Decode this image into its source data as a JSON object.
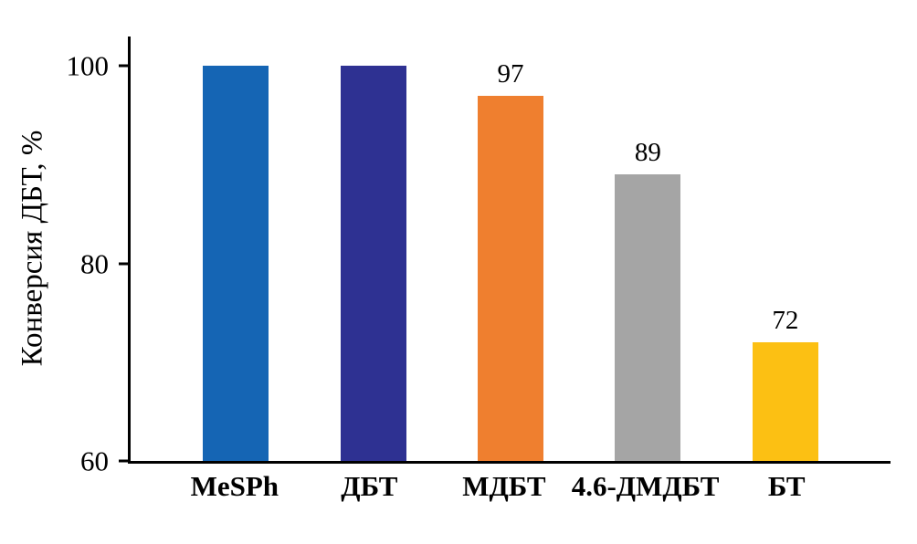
{
  "chart_data": {
    "type": "bar",
    "title": "",
    "xlabel": "",
    "ylabel": "Конверсия ДБТ, %",
    "ylim": [
      60,
      103
    ],
    "yticks": [
      60,
      80,
      100
    ],
    "grid": false,
    "legend": "none",
    "categories": [
      "MeSPh",
      "ДБТ",
      "МДБТ",
      "4.6-ДМДБТ",
      "БТ"
    ],
    "values": [
      100,
      100,
      97,
      89,
      72
    ],
    "bar_labels": [
      "",
      "",
      "97",
      "89",
      "72"
    ],
    "bar_colors": [
      "#1565b4",
      "#2e3192",
      "#ef7f2f",
      "#a5a5a5",
      "#fcc013"
    ],
    "axis_color": "#000000"
  }
}
